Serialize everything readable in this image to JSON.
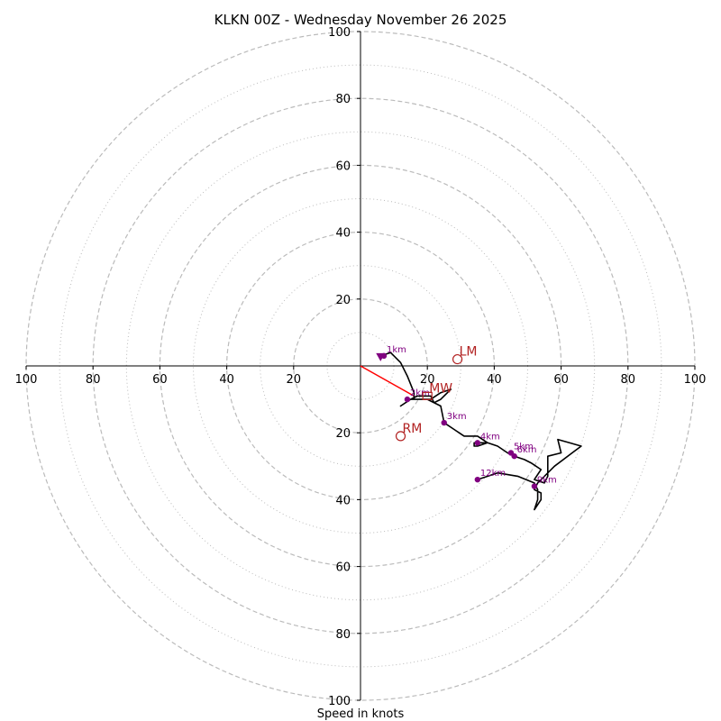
{
  "chart_data": {
    "type": "hodograph",
    "title": "KLKN 00Z - Wednesday November 26 2025",
    "xlabel": "Speed in knots",
    "units": "knots",
    "max_speed": 100,
    "major_rings": [
      20,
      40,
      60,
      80,
      100
    ],
    "minor_rings": [
      10,
      30,
      50,
      70,
      90
    ],
    "tick_labels": [
      "100",
      "80",
      "60",
      "40",
      "20",
      "20",
      "40",
      "60",
      "80",
      "100"
    ],
    "y_tick_labels": [
      "100",
      "80",
      "60",
      "40",
      "20",
      "20",
      "40",
      "60",
      "80",
      "100"
    ],
    "colors": {
      "trace": "#000000",
      "height_points": "#800080",
      "markers": "#b22222",
      "shear_vector": "#ff0000",
      "grid": "#bbbbbb"
    },
    "trace": [
      [
        6,
        3
      ],
      [
        9,
        4
      ],
      [
        12,
        1
      ],
      [
        14,
        -3
      ],
      [
        16,
        -8
      ],
      [
        16,
        -10
      ],
      [
        18,
        -10
      ],
      [
        21,
        -10
      ],
      [
        24,
        -8
      ],
      [
        27,
        -7
      ],
      [
        24,
        -10
      ],
      [
        22,
        -11
      ],
      [
        21,
        -9
      ],
      [
        17,
        -9
      ],
      [
        15,
        -10
      ],
      [
        12,
        -12
      ],
      [
        15,
        -10
      ],
      [
        20,
        -10
      ],
      [
        24,
        -12
      ],
      [
        25,
        -17
      ],
      [
        28,
        -19
      ],
      [
        31,
        -21
      ],
      [
        35,
        -21
      ],
      [
        38,
        -23
      ],
      [
        35,
        -24
      ],
      [
        34,
        -24
      ],
      [
        34,
        -23
      ],
      [
        38,
        -23
      ],
      [
        41,
        -24
      ],
      [
        44,
        -26
      ],
      [
        46,
        -27
      ],
      [
        49,
        -28
      ],
      [
        51,
        -29
      ],
      [
        54,
        -31
      ],
      [
        52,
        -34
      ],
      [
        55,
        -35
      ],
      [
        56,
        -33
      ],
      [
        56,
        -27
      ],
      [
        60,
        -26
      ],
      [
        59,
        -22
      ],
      [
        66,
        -24
      ],
      [
        58,
        -30
      ],
      [
        53,
        -35
      ],
      [
        52,
        -37
      ],
      [
        54,
        -38
      ],
      [
        54,
        -40
      ],
      [
        52,
        -43
      ],
      [
        53,
        -40
      ],
      [
        53,
        -37
      ],
      [
        52,
        -35
      ],
      [
        47,
        -33
      ],
      [
        41,
        -32
      ],
      [
        35,
        -34
      ]
    ],
    "height_points": [
      {
        "label": "1km",
        "u": 7,
        "v": 3
      },
      {
        "label": "2km",
        "u": 14,
        "v": -10
      },
      {
        "label": "3km",
        "u": 25,
        "v": -17
      },
      {
        "label": "4km",
        "u": 35,
        "v": -23
      },
      {
        "label": "5km",
        "u": 45,
        "v": -26
      },
      {
        "label": "6km",
        "u": 46,
        "v": -27
      },
      {
        "label": "9km",
        "u": 52,
        "v": -36
      },
      {
        "label": "12km",
        "u": 35,
        "v": -34
      }
    ],
    "markers": [
      {
        "label": "LM",
        "u": 29,
        "v": 2
      },
      {
        "label": "RM",
        "u": 12,
        "v": -21
      },
      {
        "label": "MW",
        "u": 20,
        "v": -9
      }
    ],
    "shear_vector": {
      "from": [
        0,
        0
      ],
      "to": [
        16,
        -9
      ]
    }
  }
}
